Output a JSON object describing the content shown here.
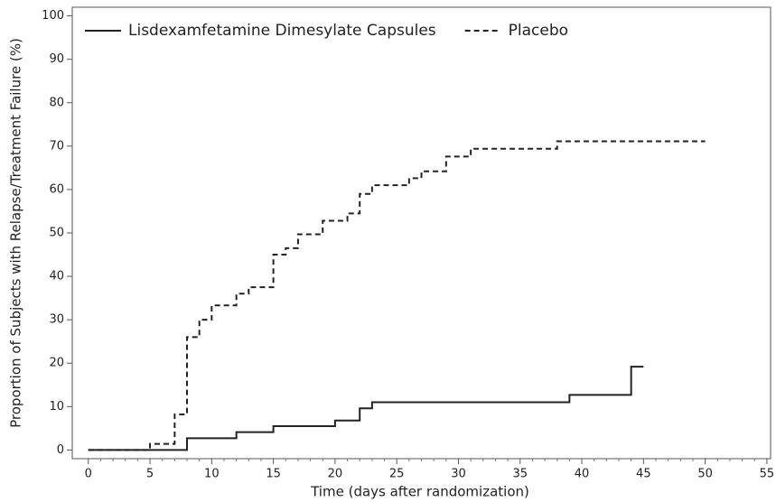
{
  "chart_data": {
    "type": "step",
    "xlabel": "Time (days after randomization)",
    "ylabel": "Proportion of Subjects with Relapse/Treatment Failure (%)",
    "xlim": [
      -1.3,
      55.3
    ],
    "ylim": [
      -2,
      102
    ],
    "xticks": [
      0,
      5,
      10,
      15,
      20,
      25,
      30,
      35,
      40,
      45,
      50,
      55
    ],
    "yticks": [
      0,
      10,
      20,
      30,
      40,
      50,
      60,
      70,
      80,
      90,
      100
    ],
    "minor_xticks": true,
    "legend": "top-left",
    "series": [
      {
        "name": "Lisdexamfetamine Dimesylate Capsules",
        "color": "#222222",
        "dashed": false,
        "x": [
          0,
          8,
          12,
          15,
          20,
          22,
          23,
          39,
          44,
          45
        ],
        "values": [
          0,
          2.7,
          4.1,
          5.5,
          6.8,
          9.6,
          11.0,
          12.7,
          19.2,
          19.2
        ]
      },
      {
        "name": "Placebo",
        "color": "#222222",
        "dashed": true,
        "x": [
          0,
          5,
          7,
          8,
          9,
          10,
          12,
          13,
          15,
          16,
          17,
          19,
          21,
          22,
          23,
          26,
          27,
          29,
          31,
          38,
          50
        ],
        "values": [
          0,
          1.4,
          8.2,
          26,
          30,
          33.3,
          36,
          37.5,
          45,
          46.5,
          49.7,
          52.8,
          54.5,
          59,
          61,
          62.6,
          64.2,
          67.6,
          69.4,
          71.1,
          71.1
        ]
      }
    ]
  }
}
